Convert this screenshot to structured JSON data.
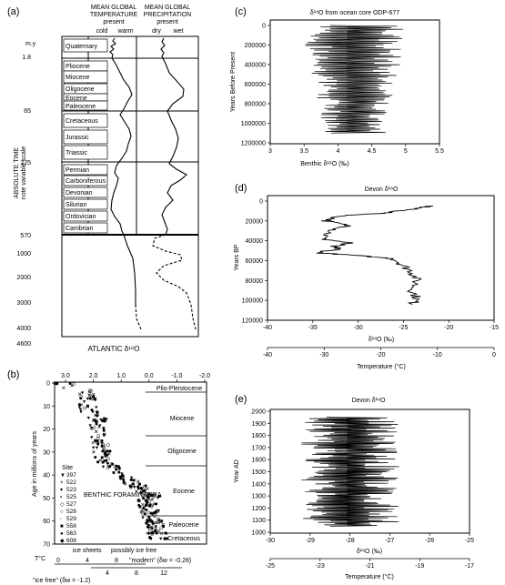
{
  "panels": {
    "a": {
      "letter": "(a)",
      "temp_header": [
        "MEAN GLOBAL",
        "TEMPERATURE",
        "present"
      ],
      "temp_scale": [
        "cold",
        "warm"
      ],
      "precip_header": [
        "MEAN GLOBAL",
        "PRECIPITATION",
        "present"
      ],
      "precip_scale": [
        "dry",
        "wet"
      ],
      "yunit": "m.y",
      "ylabel": [
        "ABSOLUTE TIME",
        "note variable scale"
      ],
      "ages": [
        "1.8",
        "65",
        "225",
        "570",
        "1000",
        "2000",
        "3000",
        "4000",
        "4600"
      ],
      "periods": [
        "Quaternary",
        "Pliocene",
        "Miocene",
        "Oligocene",
        "Eocene",
        "Paleocene",
        "Cretaceous",
        "Jurassic",
        "Triassic",
        "Permian",
        "Carboniferous",
        "Devonian",
        "Silurian",
        "Ordovician",
        "Cambrian"
      ],
      "footer": "ATLANTIC δ¹⁸O"
    },
    "b": {
      "letter": "(b)",
      "top_ticks": [
        "3.0",
        "2.0",
        "1.0",
        "0.0",
        "-1.0",
        "-2.0"
      ],
      "y_ticks": [
        "0",
        "10",
        "20",
        "30",
        "40",
        "50",
        "60",
        "70"
      ],
      "ylabel": "Age in millions of years",
      "epochs": [
        "Plio-Pleistocene",
        "Miocene",
        "Oligocene",
        "Eocene",
        "Paleocene",
        "Cretaceous"
      ],
      "site_title": "Site",
      "sites": [
        "397",
        "522",
        "523",
        "525",
        "527",
        "528",
        "529",
        "558",
        "563",
        "608"
      ],
      "benthic": "BENTHIC FORAMINIFERA",
      "ice_sheets": "ice sheets",
      "possibly_ice_free": "possibly ice free",
      "t_label": "T°C",
      "temp_ticks_top": [
        "0",
        "4",
        "8"
      ],
      "temp_ticks_bottom": [
        "4",
        "8",
        "12"
      ],
      "ice_free": "\"ice free\" (δw = -1.2)",
      "modern": "\"modern\" (δw = -0.28)"
    },
    "c": {
      "letter": "(c)",
      "title": "δ¹⁸O from ocean core ODP-677",
      "ylabel": "Years Before Present",
      "xlabel": "Benthic δ¹⁸O (‰)",
      "yticks": [
        "0",
        "200000",
        "400000",
        "600000",
        "800000",
        "1000000",
        "1200000"
      ],
      "xticks": [
        "3",
        "3.5",
        "4",
        "4.5",
        "5",
        "5.5"
      ]
    },
    "d": {
      "letter": "(d)",
      "title": "Devon δ¹⁸O",
      "ylabel": "Years BP",
      "xlabel": "δ¹⁸O (‰)",
      "xlabel2": "Temperature (°C)",
      "yticks": [
        "0",
        "20000",
        "40000",
        "60000",
        "80000",
        "100000",
        "120000"
      ],
      "xticks": [
        "-40",
        "-35",
        "-30",
        "-25",
        "-20",
        "-15"
      ],
      "x2ticks": [
        "-40",
        "-30",
        "-20",
        "-10",
        "0"
      ]
    },
    "e": {
      "letter": "(e)",
      "title": "Devon δ¹⁸O",
      "ylabel": "Year AD",
      "xlabel": "δ¹⁸O (‰)",
      "xlabel2": "Temperature (°C)",
      "yticks": [
        "2000",
        "1900",
        "1800",
        "1700",
        "1600",
        "1500",
        "1400",
        "1300",
        "1200",
        "1100",
        "1000"
      ],
      "xticks": [
        "-30",
        "-29",
        "-28",
        "-27",
        "-26",
        "-25"
      ],
      "x2ticks": [
        "-25",
        "-23",
        "-21",
        "-19",
        "-17"
      ]
    }
  },
  "chart_data": [
    {
      "type": "line",
      "panel": "c",
      "series": [
        {
          "x_range": [
            3.4,
            5.2
          ],
          "y_range": [
            0,
            1100000
          ]
        }
      ],
      "xlim": [
        3,
        5.5
      ],
      "ylim": [
        1200000,
        0
      ]
    },
    {
      "type": "line",
      "panel": "d",
      "series": [
        {
          "x": [
            -22,
            -24,
            -27,
            -32,
            -33.5,
            -31,
            -33,
            -34,
            -31,
            -33,
            -32,
            -34.5,
            -30,
            -26,
            -25,
            -24,
            -23.5,
            -24,
            -23.5,
            -24
          ],
          "y": [
            5000,
            8000,
            12000,
            15000,
            20000,
            25000,
            30000,
            38000,
            42000,
            46000,
            48000,
            52000,
            55000,
            58000,
            65000,
            72000,
            80000,
            90000,
            98000,
            104000
          ]
        }
      ],
      "xlim": [
        -40,
        -15
      ],
      "ylim": [
        120000,
        0
      ]
    },
    {
      "type": "line",
      "panel": "e",
      "series": [
        {
          "x_range": [
            -29.5,
            -26.5
          ],
          "y_range": [
            1050,
            1950
          ]
        }
      ],
      "xlim": [
        -30,
        -25
      ],
      "ylim": [
        1000,
        2000
      ]
    },
    {
      "type": "scatter",
      "panel": "b",
      "series": [
        {
          "x_range": [
            3.3,
            -0.9
          ],
          "y_range": [
            0,
            68
          ]
        }
      ],
      "xlim": [
        3.5,
        -2.2
      ],
      "ylim": [
        70,
        0
      ]
    }
  ]
}
